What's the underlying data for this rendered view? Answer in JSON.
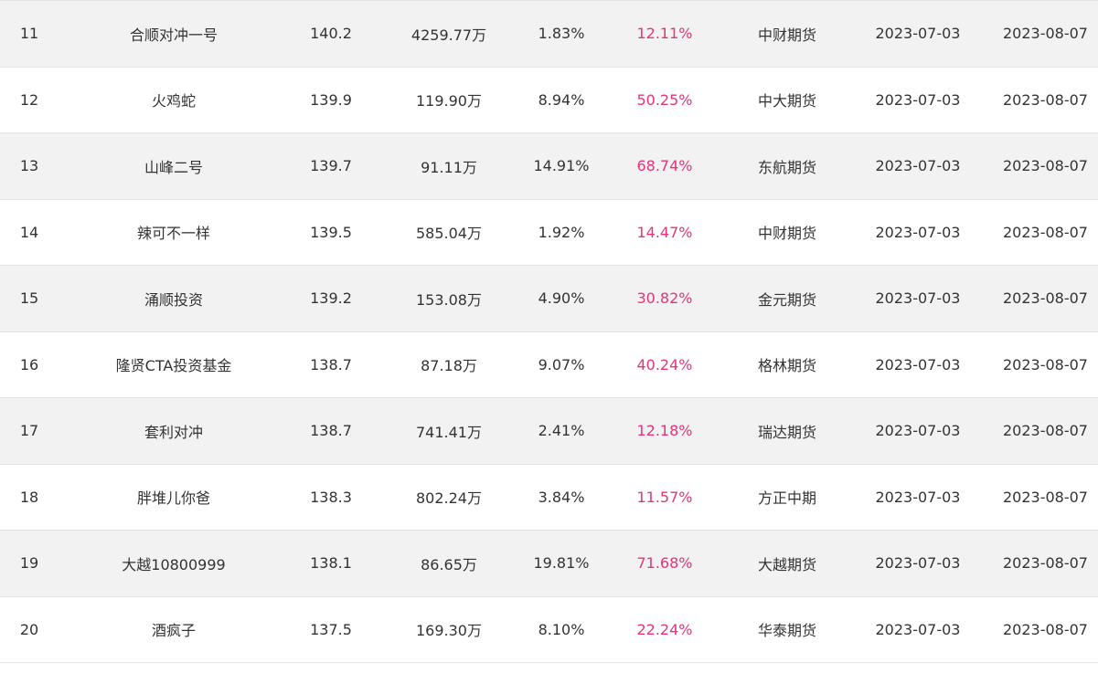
{
  "table": {
    "accent_color": "#e8337a",
    "rows": [
      {
        "rank": "11",
        "name": "合顺对冲一号",
        "score": "140.2",
        "equity": "4259.77万",
        "drawdown": "1.83%",
        "return": "12.11%",
        "broker": "中财期货",
        "start": "2023-07-03",
        "end": "2023-08-07"
      },
      {
        "rank": "12",
        "name": "火鸡蛇",
        "score": "139.9",
        "equity": "119.90万",
        "drawdown": "8.94%",
        "return": "50.25%",
        "broker": "中大期货",
        "start": "2023-07-03",
        "end": "2023-08-07"
      },
      {
        "rank": "13",
        "name": "山峰二号",
        "score": "139.7",
        "equity": "91.11万",
        "drawdown": "14.91%",
        "return": "68.74%",
        "broker": "东航期货",
        "start": "2023-07-03",
        "end": "2023-08-07"
      },
      {
        "rank": "14",
        "name": "辣可不一样",
        "score": "139.5",
        "equity": "585.04万",
        "drawdown": "1.92%",
        "return": "14.47%",
        "broker": "中财期货",
        "start": "2023-07-03",
        "end": "2023-08-07"
      },
      {
        "rank": "15",
        "name": "涌顺投资",
        "score": "139.2",
        "equity": "153.08万",
        "drawdown": "4.90%",
        "return": "30.82%",
        "broker": "金元期货",
        "start": "2023-07-03",
        "end": "2023-08-07"
      },
      {
        "rank": "16",
        "name": "隆贤CTA投资基金",
        "score": "138.7",
        "equity": "87.18万",
        "drawdown": "9.07%",
        "return": "40.24%",
        "broker": "格林期货",
        "start": "2023-07-03",
        "end": "2023-08-07"
      },
      {
        "rank": "17",
        "name": "套利对冲",
        "score": "138.7",
        "equity": "741.41万",
        "drawdown": "2.41%",
        "return": "12.18%",
        "broker": "瑞达期货",
        "start": "2023-07-03",
        "end": "2023-08-07"
      },
      {
        "rank": "18",
        "name": "胖堆儿你爸",
        "score": "138.3",
        "equity": "802.24万",
        "drawdown": "3.84%",
        "return": "11.57%",
        "broker": "方正中期",
        "start": "2023-07-03",
        "end": "2023-08-07"
      },
      {
        "rank": "19",
        "name": "大越10800999",
        "score": "138.1",
        "equity": "86.65万",
        "drawdown": "19.81%",
        "return": "71.68%",
        "broker": "大越期货",
        "start": "2023-07-03",
        "end": "2023-08-07"
      },
      {
        "rank": "20",
        "name": "酒疯子",
        "score": "137.5",
        "equity": "169.30万",
        "drawdown": "8.10%",
        "return": "22.24%",
        "broker": "华泰期货",
        "start": "2023-07-03",
        "end": "2023-08-07"
      }
    ]
  }
}
